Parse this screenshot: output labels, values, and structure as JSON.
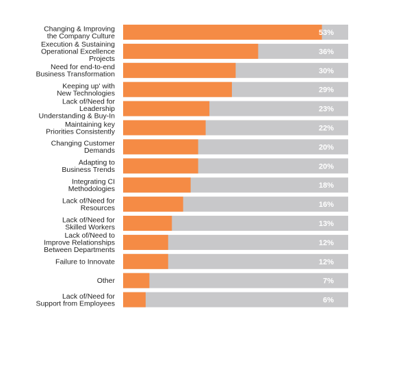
{
  "chart_data": {
    "type": "bar",
    "orientation": "horizontal",
    "stacked_background": true,
    "categories": [
      [
        "Changing & Improving",
        "the Company Culture"
      ],
      [
        "Execution & Sustaining",
        "Operational Excellence",
        "Projects"
      ],
      [
        "Need for end-to-end",
        "Business Transformation"
      ],
      [
        "Keeping up' with",
        "New Technologies"
      ],
      [
        "Lack of/Need for",
        "Leadership",
        "Understanding  & Buy-In"
      ],
      [
        "Maintaining key",
        "Priorities Consistently"
      ],
      [
        "Changing Customer",
        "Demands"
      ],
      [
        "Adapting to",
        "Business Trends"
      ],
      [
        "Integrating CI",
        "Methodologies"
      ],
      [
        "Lack of/Need for",
        "Resources"
      ],
      [
        "Lack of/Need for",
        "Skilled Workers"
      ],
      [
        "Lack of/Need to",
        "Improve Relationships",
        "Between Departments"
      ],
      [
        "Failure to Innovate"
      ],
      [
        "Other"
      ],
      [
        "Lack of/Need for",
        "Support from Employees"
      ]
    ],
    "values": [
      53,
      36,
      30,
      29,
      23,
      22,
      20,
      20,
      18,
      16,
      13,
      12,
      12,
      7,
      6
    ],
    "value_labels": [
      "53%",
      "36%",
      "30%",
      "29%",
      "23%",
      "22%",
      "20%",
      "20%",
      "18%",
      "16%",
      "13%",
      "12%",
      "12%",
      "7%",
      "6%"
    ],
    "xlim": [
      0,
      60
    ],
    "grid": false,
    "legend": "none",
    "colors": {
      "bar": "#F58B45",
      "track": "#C8C8CA",
      "value_text": "#FFFFFF",
      "label_text": "#222222"
    }
  }
}
